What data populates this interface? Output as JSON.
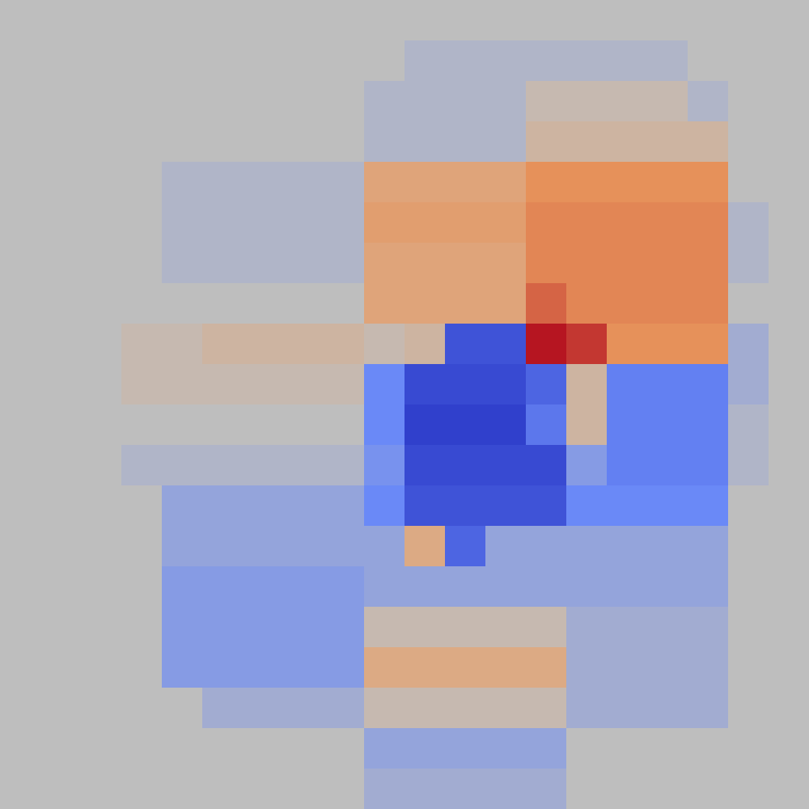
{
  "chart_data": {
    "type": "heatmap",
    "color": "plasma",
    "tick_labels": false,
    "zlim": [
      -1,
      1
    ],
    "cells": [
      [
        0,
        0,
        0,
        0,
        0,
        0,
        0,
        0,
        0,
        0,
        0,
        0,
        0,
        0,
        0,
        0,
        0,
        0,
        0,
        0
      ],
      [
        0,
        0,
        0,
        0,
        0,
        0,
        0,
        0,
        0,
        0,
        -0.05,
        -0.05,
        -0.05,
        -0.05,
        -0.05,
        -0.05,
        -0.05,
        0,
        0,
        0
      ],
      [
        0,
        0,
        0,
        0,
        0,
        0,
        0,
        0,
        0,
        -0.05,
        -0.05,
        -0.05,
        -0.05,
        0.05,
        0.05,
        0.05,
        0.05,
        -0.05,
        0,
        0
      ],
      [
        0,
        0,
        0,
        0,
        0,
        0,
        0,
        0,
        0,
        -0.05,
        -0.05,
        -0.05,
        -0.05,
        0.1,
        0.1,
        0.1,
        0.1,
        0.1,
        0,
        0
      ],
      [
        0,
        0,
        0,
        0,
        -0.05,
        -0.05,
        -0.05,
        -0.05,
        -0.05,
        0.25,
        0.25,
        0.25,
        0.25,
        0.4,
        0.4,
        0.4,
        0.4,
        0.4,
        0,
        0
      ],
      [
        0,
        0,
        0,
        0,
        -0.05,
        -0.05,
        -0.05,
        -0.05,
        -0.05,
        0.3,
        0.3,
        0.3,
        0.3,
        0.45,
        0.45,
        0.45,
        0.45,
        0.45,
        -0.05,
        0
      ],
      [
        0,
        0,
        0,
        0,
        -0.05,
        -0.05,
        -0.05,
        -0.05,
        -0.05,
        0.25,
        0.25,
        0.25,
        0.25,
        0.45,
        0.45,
        0.45,
        0.45,
        0.45,
        -0.05,
        0
      ],
      [
        0,
        0,
        0,
        0,
        0,
        0,
        0,
        0,
        0,
        0.25,
        0.25,
        0.25,
        0.25,
        0.6,
        0.45,
        0.45,
        0.45,
        0.45,
        0,
        0
      ],
      [
        0,
        0,
        0,
        0.05,
        0.05,
        0.1,
        0.1,
        0.1,
        0.1,
        0.05,
        0.1,
        -0.6,
        -0.6,
        0.95,
        0.8,
        0.4,
        0.4,
        0.4,
        -0.1,
        0
      ],
      [
        0,
        0,
        0,
        0.05,
        0.05,
        0.05,
        0.05,
        0.05,
        0.05,
        -0.3,
        -0.65,
        -0.65,
        -0.65,
        -0.5,
        0.1,
        -0.35,
        -0.35,
        -0.35,
        -0.1,
        0
      ],
      [
        0,
        0,
        0,
        0,
        0,
        0,
        0,
        0,
        0,
        -0.3,
        -0.7,
        -0.7,
        -0.7,
        -0.4,
        0.1,
        -0.35,
        -0.35,
        -0.35,
        -0.05,
        0
      ],
      [
        0,
        0,
        0,
        -0.05,
        -0.05,
        -0.05,
        -0.05,
        -0.05,
        -0.05,
        -0.25,
        -0.65,
        -0.65,
        -0.65,
        -0.65,
        -0.2,
        -0.35,
        -0.35,
        -0.35,
        -0.05,
        0
      ],
      [
        0,
        0,
        0,
        0,
        -0.15,
        -0.15,
        -0.15,
        -0.15,
        -0.15,
        -0.3,
        -0.6,
        -0.6,
        -0.6,
        -0.6,
        -0.3,
        -0.3,
        -0.3,
        -0.3,
        0,
        0
      ],
      [
        0,
        0,
        0,
        0,
        -0.15,
        -0.15,
        -0.15,
        -0.15,
        -0.15,
        -0.15,
        0.2,
        -0.5,
        -0.15,
        -0.15,
        -0.15,
        -0.15,
        -0.15,
        -0.15,
        0,
        0
      ],
      [
        0,
        0,
        0,
        0,
        -0.2,
        -0.2,
        -0.2,
        -0.2,
        -0.2,
        -0.15,
        -0.15,
        -0.15,
        -0.15,
        -0.15,
        -0.15,
        -0.15,
        -0.15,
        -0.15,
        0,
        0
      ],
      [
        0,
        0,
        0,
        0,
        -0.2,
        -0.2,
        -0.2,
        -0.2,
        -0.2,
        0.05,
        0.05,
        0.05,
        0.05,
        0.05,
        -0.1,
        -0.1,
        -0.1,
        -0.1,
        0,
        0
      ],
      [
        0,
        0,
        0,
        0,
        -0.2,
        -0.2,
        -0.2,
        -0.2,
        -0.2,
        0.2,
        0.2,
        0.2,
        0.2,
        0.2,
        -0.1,
        -0.1,
        -0.1,
        -0.1,
        0,
        0
      ],
      [
        0,
        0,
        0,
        0,
        0,
        -0.1,
        -0.1,
        -0.1,
        -0.1,
        0.05,
        0.05,
        0.05,
        0.05,
        0.05,
        -0.1,
        -0.1,
        -0.1,
        -0.1,
        0,
        0
      ],
      [
        0,
        0,
        0,
        0,
        0,
        0,
        0,
        0,
        0,
        -0.15,
        -0.15,
        -0.15,
        -0.15,
        -0.15,
        0,
        0,
        0,
        0,
        0,
        0
      ],
      [
        0,
        0,
        0,
        0,
        0,
        0,
        0,
        0,
        0,
        -0.1,
        -0.1,
        -0.1,
        -0.1,
        -0.1,
        0,
        0,
        0,
        0,
        0,
        0
      ]
    ]
  }
}
